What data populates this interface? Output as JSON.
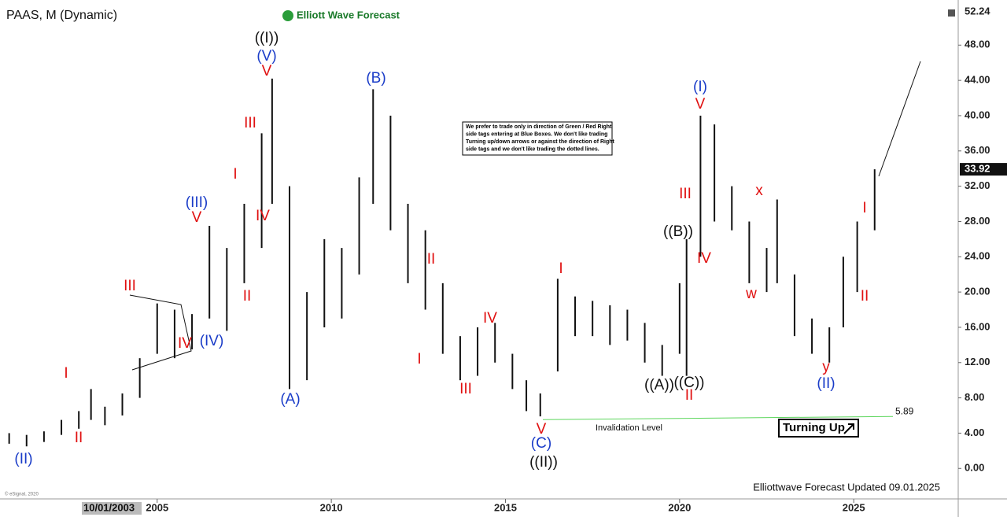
{
  "chart_data": {
    "type": "ohlc",
    "title": "PAAS, M (Dynamic)",
    "brand": "Elliott Wave Forecast",
    "note": [
      "We prefer to trade only in direction of Green / Red Right",
      "side tags entering at Blue Boxes. We don't like trading",
      "Turning up/down arrows or against the direction of Right",
      "side tags and we don't like trading the dotted lines."
    ],
    "footer": "Elliottwave Forecast Updated 09.01.2025",
    "copyright": "© eSignal, 2020",
    "cursor_date": "10/01/2003",
    "top_price": 52.24,
    "last_price": 33.92,
    "invalidation_label": "Invalidation Level",
    "invalidation_level": 5.89,
    "turning_label": "Turning Up",
    "x": [
      2000.75,
      2001.25,
      2001.75,
      2002.25,
      2002.75,
      2003.1,
      2003.5,
      2004,
      2004.5,
      2005,
      2005.5,
      2006,
      2006.5,
      2007,
      2007.5,
      2008,
      2008.3,
      2008.8,
      2009.3,
      2009.8,
      2010.3,
      2010.8,
      2011.2,
      2011.7,
      2012.2,
      2012.7,
      2013.2,
      2013.7,
      2014.2,
      2014.7,
      2015.2,
      2015.6,
      2016,
      2016.5,
      2017,
      2017.5,
      2018,
      2018.5,
      2019,
      2019.5,
      2020,
      2020.2,
      2020.6,
      2021,
      2021.5,
      2022,
      2022.5,
      2022.8,
      2023.3,
      2023.8,
      2024.3,
      2024.7,
      2025.1,
      2025.6
    ],
    "high": [
      4.0,
      3.8,
      4.2,
      5.5,
      6.5,
      9.0,
      7.0,
      8.5,
      12.5,
      18.7,
      18.0,
      17.5,
      27.5,
      25.0,
      30.0,
      38.0,
      44.2,
      32.0,
      20.0,
      26.0,
      25.0,
      33.0,
      43.0,
      40.0,
      30.0,
      27.0,
      21.0,
      15.0,
      16.0,
      16.5,
      13.0,
      10.0,
      8.5,
      21.5,
      19.5,
      19.0,
      18.5,
      18.0,
      16.5,
      14.0,
      21.0,
      26.0,
      40.0,
      39.0,
      32.0,
      28.0,
      25.0,
      30.5,
      22.0,
      17.0,
      16.0,
      24.0,
      28.0,
      33.92
    ],
    "low": [
      2.8,
      2.5,
      3.0,
      3.8,
      4.5,
      5.5,
      4.9,
      6.0,
      8.0,
      13.0,
      12.5,
      13.5,
      17.0,
      15.6,
      21.0,
      25.0,
      30.0,
      9.0,
      10.0,
      16.0,
      17.0,
      22.0,
      30.0,
      27.0,
      21.0,
      18.0,
      13.0,
      10.0,
      10.5,
      12.0,
      9.0,
      6.5,
      5.9,
      11.0,
      15.0,
      15.0,
      14.0,
      14.5,
      12.0,
      10.5,
      13.0,
      10.5,
      24.0,
      28.0,
      27.0,
      21.0,
      20.0,
      21.0,
      15.0,
      13.0,
      12.0,
      16.0,
      20.0,
      27.0
    ],
    "xlim": [
      2000.6,
      2028
    ],
    "xticks": [
      2005,
      2010,
      2015,
      2020,
      2025
    ],
    "ylim": [
      -3.1,
      52.4
    ],
    "yticks": [
      {
        "value": 0,
        "label": "0.00"
      },
      {
        "value": 4,
        "label": "4.00"
      },
      {
        "value": 8,
        "label": "8.00"
      },
      {
        "value": 12,
        "label": "12.00"
      },
      {
        "value": 16,
        "label": "16.00"
      },
      {
        "value": 20,
        "label": "20.00"
      },
      {
        "value": 24,
        "label": "24.00"
      },
      {
        "value": 28,
        "label": "28.00"
      },
      {
        "value": 32,
        "label": "32.00"
      },
      {
        "value": 36,
        "label": "36.00"
      },
      {
        "value": 40,
        "label": "40.00"
      },
      {
        "value": 44,
        "label": "44.00"
      },
      {
        "value": 48,
        "label": "48.00"
      }
    ],
    "annotations": [
      {
        "text": "(II)",
        "color": "#1a3cc8"
      },
      {
        "text": "I",
        "color": "#e01010"
      },
      {
        "text": "II",
        "color": "#e01010"
      },
      {
        "text": "III",
        "color": "#e01010"
      },
      {
        "text": "IV",
        "color": "#e01010"
      },
      {
        "text": "(IV)",
        "color": "#1a3cc8"
      },
      {
        "text": "(III)",
        "color": "#1a3cc8"
      },
      {
        "text": "V",
        "color": "#e01010"
      },
      {
        "text": "I",
        "color": "#e01010"
      },
      {
        "text": "II",
        "color": "#e01010"
      },
      {
        "text": "III",
        "color": "#e01010"
      },
      {
        "text": "IV",
        "color": "#e01010"
      },
      {
        "text": "V",
        "color": "#e01010"
      },
      {
        "text": "(V)",
        "color": "#1a3cc8"
      },
      {
        "text": "((I))",
        "color": "#111111"
      },
      {
        "text": "(A)",
        "color": "#1a3cc8"
      },
      {
        "text": "(B)",
        "color": "#1a3cc8"
      },
      {
        "text": "I",
        "color": "#e01010"
      },
      {
        "text": "II",
        "color": "#e01010"
      },
      {
        "text": "III",
        "color": "#e01010"
      },
      {
        "text": "IV",
        "color": "#e01010"
      },
      {
        "text": "V",
        "color": "#e01010"
      },
      {
        "text": "(C)",
        "color": "#1a3cc8"
      },
      {
        "text": "((II))",
        "color": "#111111"
      },
      {
        "text": "I",
        "color": "#e01010"
      },
      {
        "text": "((A))",
        "color": "#111111"
      },
      {
        "text": "((B))",
        "color": "#111111"
      },
      {
        "text": "((C))",
        "color": "#111111"
      },
      {
        "text": "II",
        "color": "#e01010"
      },
      {
        "text": "III",
        "color": "#e01010"
      },
      {
        "text": "IV",
        "color": "#e01010"
      },
      {
        "text": "V",
        "color": "#e01010"
      },
      {
        "text": "(I)",
        "color": "#1a3cc8"
      },
      {
        "text": "x",
        "color": "#e01010"
      },
      {
        "text": "w",
        "color": "#e01010"
      },
      {
        "text": "y",
        "color": "#e01010"
      },
      {
        "text": "(II)",
        "color": "#1a3cc8"
      },
      {
        "text": "I",
        "color": "#e01010"
      },
      {
        "text": "II",
        "color": "#e01010"
      }
    ]
  }
}
